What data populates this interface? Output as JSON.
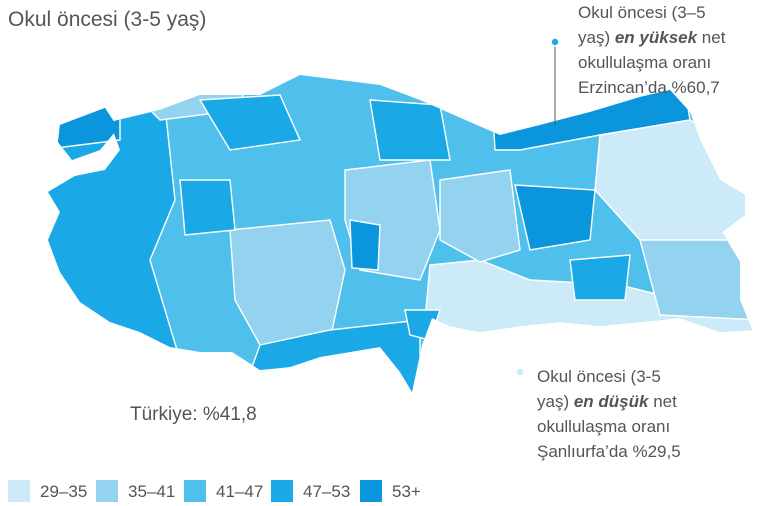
{
  "title": "Okul öncesi (3-5 yaş)",
  "national": "Türkiye: %41,8",
  "highest": {
    "lines": [
      "Okul öncesi (3–5",
      "okullulaşma oranı",
      "Erzincan’da %60,7"
    ],
    "prefix": "yaş) ",
    "emphasis": "en yüksek",
    "suffix": " net"
  },
  "lowest": {
    "lines": [
      "Okul öncesi (3-5",
      "okullulaşma oranı",
      "Şanlıurfa’da %29,5"
    ],
    "prefix": "yaş) ",
    "emphasis": "en düşük",
    "suffix": " net"
  },
  "legend": [
    {
      "label": "29–35",
      "color": "#cdeaf8"
    },
    {
      "label": "35–41",
      "color": "#93d3f0"
    },
    {
      "label": "41–47",
      "color": "#4fc0ec"
    },
    {
      "label": "47–53",
      "color": "#1aa9e6"
    },
    {
      "label": "53+",
      "color": "#0b95dc"
    }
  ]
}
